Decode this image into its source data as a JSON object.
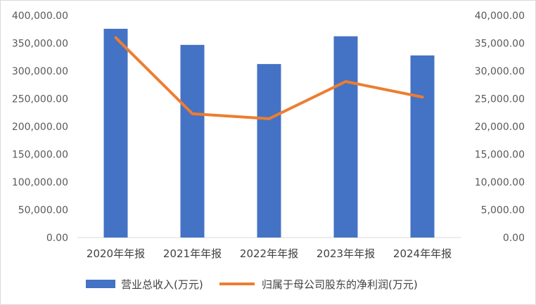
{
  "chart_data": {
    "type": "bar+line",
    "categories": [
      "2020年年报",
      "2021年年报",
      "2022年年报",
      "2023年年报",
      "2024年年报"
    ],
    "series": [
      {
        "name": "营业总收入(万元)",
        "type": "bar",
        "axis": "left",
        "color": "#4472C4",
        "values": [
          376000,
          347000,
          312500,
          362500,
          328000
        ]
      },
      {
        "name": "归属于母公司股东的净利润(万元)",
        "type": "line",
        "axis": "right",
        "color": "#ED7D31",
        "values": [
          36000,
          22300,
          21400,
          28100,
          25300
        ]
      }
    ],
    "y_left": {
      "min": 0,
      "max": 400000,
      "step": 50000,
      "tick_labels": [
        "0.00",
        "50,000.00",
        "100,000.00",
        "150,000.00",
        "200,000.00",
        "250,000.00",
        "300,000.00",
        "350,000.00",
        "400,000.00"
      ]
    },
    "y_right": {
      "min": 0,
      "max": 40000,
      "step": 5000,
      "tick_labels": [
        "0.00",
        "5,000.00",
        "10,000.00",
        "15,000.00",
        "20,000.00",
        "25,000.00",
        "30,000.00",
        "35,000.00",
        "40,000.00"
      ]
    },
    "grid": false,
    "legend_position": "bottom"
  }
}
